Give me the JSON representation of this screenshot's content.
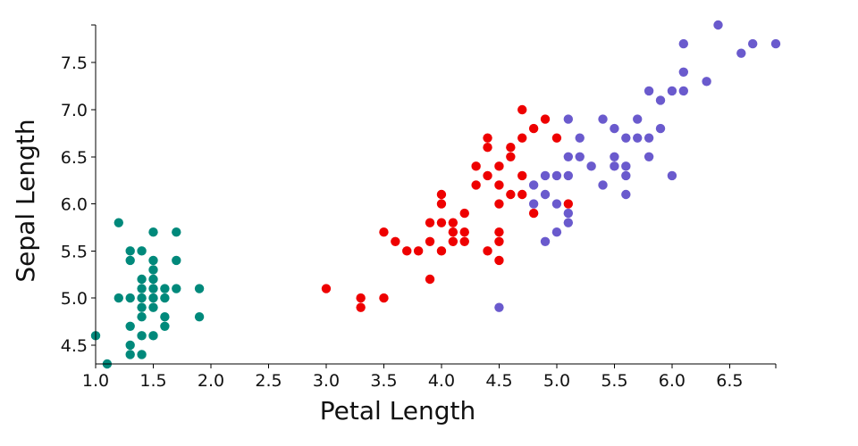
{
  "chart_data": {
    "type": "scatter",
    "xlabel": "Petal Length",
    "ylabel": "Sepal Length",
    "xlim": [
      1.0,
      6.9
    ],
    "ylim": [
      4.3,
      7.9
    ],
    "grid": false,
    "x_ticks": [
      1.0,
      1.5,
      2.0,
      2.5,
      3.0,
      3.5,
      4.0,
      4.5,
      5.0,
      5.5,
      6.0,
      6.5
    ],
    "x_tick_labels": [
      "1.0",
      "1.5",
      "2.0",
      "2.5",
      "3.0",
      "3.5",
      "4.0",
      "4.5",
      "5.0",
      "5.5",
      "6.0",
      "6.5"
    ],
    "y_ticks": [
      4.5,
      5.0,
      5.5,
      6.0,
      6.5,
      7.0,
      7.5
    ],
    "y_tick_labels": [
      "4.5",
      "5.0",
      "5.5",
      "6.0",
      "6.5",
      "7.0",
      "7.5"
    ],
    "series": [
      {
        "color": "#00897b",
        "points": [
          [
            1.0,
            4.6
          ],
          [
            1.1,
            4.3
          ],
          [
            1.2,
            5.8
          ],
          [
            1.2,
            5.0
          ],
          [
            1.3,
            5.5
          ],
          [
            1.3,
            5.4
          ],
          [
            1.3,
            5.0
          ],
          [
            1.3,
            4.7
          ],
          [
            1.3,
            4.5
          ],
          [
            1.3,
            4.4
          ],
          [
            1.4,
            5.5
          ],
          [
            1.4,
            5.2
          ],
          [
            1.4,
            5.1
          ],
          [
            1.4,
            5.0
          ],
          [
            1.4,
            4.9
          ],
          [
            1.4,
            4.8
          ],
          [
            1.4,
            4.6
          ],
          [
            1.4,
            4.4
          ],
          [
            1.5,
            5.7
          ],
          [
            1.5,
            5.4
          ],
          [
            1.5,
            5.3
          ],
          [
            1.5,
            5.2
          ],
          [
            1.5,
            5.1
          ],
          [
            1.5,
            5.0
          ],
          [
            1.5,
            4.9
          ],
          [
            1.5,
            4.6
          ],
          [
            1.6,
            5.1
          ],
          [
            1.6,
            5.0
          ],
          [
            1.6,
            4.8
          ],
          [
            1.6,
            4.7
          ],
          [
            1.7,
            5.7
          ],
          [
            1.7,
            5.4
          ],
          [
            1.7,
            5.1
          ],
          [
            1.9,
            5.1
          ],
          [
            1.9,
            4.8
          ]
        ]
      },
      {
        "color": "#ee0000",
        "points": [
          [
            3.0,
            5.1
          ],
          [
            3.3,
            5.0
          ],
          [
            3.3,
            4.9
          ],
          [
            3.5,
            5.7
          ],
          [
            3.5,
            5.0
          ],
          [
            3.6,
            5.6
          ],
          [
            3.7,
            5.5
          ],
          [
            3.8,
            5.5
          ],
          [
            3.9,
            5.8
          ],
          [
            3.9,
            5.6
          ],
          [
            3.9,
            5.2
          ],
          [
            4.0,
            6.1
          ],
          [
            4.0,
            6.0
          ],
          [
            4.0,
            5.8
          ],
          [
            4.0,
            5.5
          ],
          [
            4.1,
            5.8
          ],
          [
            4.1,
            5.7
          ],
          [
            4.1,
            5.6
          ],
          [
            4.2,
            5.9
          ],
          [
            4.2,
            5.7
          ],
          [
            4.2,
            5.6
          ],
          [
            4.3,
            6.4
          ],
          [
            4.3,
            6.2
          ],
          [
            4.4,
            6.7
          ],
          [
            4.4,
            6.6
          ],
          [
            4.4,
            6.3
          ],
          [
            4.4,
            5.5
          ],
          [
            4.5,
            6.4
          ],
          [
            4.5,
            6.2
          ],
          [
            4.5,
            6.0
          ],
          [
            4.5,
            5.7
          ],
          [
            4.5,
            5.6
          ],
          [
            4.5,
            5.4
          ],
          [
            4.6,
            6.6
          ],
          [
            4.6,
            6.5
          ],
          [
            4.6,
            6.1
          ],
          [
            4.7,
            7.0
          ],
          [
            4.7,
            6.7
          ],
          [
            4.7,
            6.3
          ],
          [
            4.7,
            6.1
          ],
          [
            4.8,
            6.8
          ],
          [
            4.8,
            5.9
          ],
          [
            4.9,
            6.9
          ],
          [
            5.0,
            6.7
          ],
          [
            5.1,
            6.0
          ]
        ]
      },
      {
        "color": "#6a5acd",
        "points": [
          [
            4.5,
            4.9
          ],
          [
            4.8,
            6.2
          ],
          [
            4.8,
            6.0
          ],
          [
            4.9,
            6.3
          ],
          [
            4.9,
            6.1
          ],
          [
            4.9,
            5.6
          ],
          [
            5.0,
            6.3
          ],
          [
            5.0,
            6.0
          ],
          [
            5.0,
            5.7
          ],
          [
            5.1,
            6.9
          ],
          [
            5.1,
            6.5
          ],
          [
            5.1,
            6.3
          ],
          [
            5.1,
            5.9
          ],
          [
            5.1,
            5.8
          ],
          [
            5.2,
            6.7
          ],
          [
            5.2,
            6.5
          ],
          [
            5.3,
            6.4
          ],
          [
            5.4,
            6.9
          ],
          [
            5.4,
            6.2
          ],
          [
            5.5,
            6.8
          ],
          [
            5.5,
            6.5
          ],
          [
            5.5,
            6.4
          ],
          [
            5.6,
            6.7
          ],
          [
            5.6,
            6.4
          ],
          [
            5.6,
            6.3
          ],
          [
            5.6,
            6.1
          ],
          [
            5.7,
            6.9
          ],
          [
            5.7,
            6.7
          ],
          [
            5.8,
            7.2
          ],
          [
            5.8,
            6.7
          ],
          [
            5.8,
            6.5
          ],
          [
            5.9,
            7.1
          ],
          [
            5.9,
            6.8
          ],
          [
            6.0,
            7.2
          ],
          [
            6.0,
            6.3
          ],
          [
            6.1,
            7.7
          ],
          [
            6.1,
            7.4
          ],
          [
            6.1,
            7.2
          ],
          [
            6.3,
            7.3
          ],
          [
            6.4,
            7.9
          ],
          [
            6.6,
            7.6
          ],
          [
            6.7,
            7.7
          ],
          [
            6.9,
            7.7
          ]
        ]
      }
    ]
  }
}
